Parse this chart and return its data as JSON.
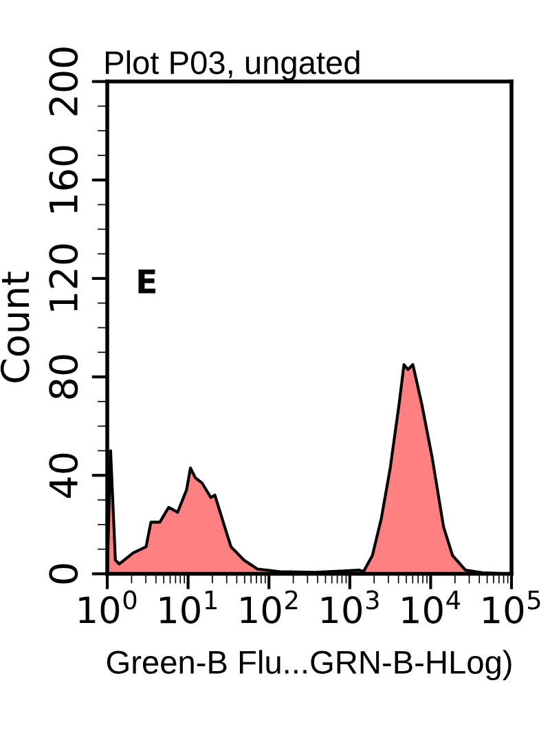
{
  "chart_data": {
    "type": "area",
    "title": "Plot P03, ungated",
    "xlabel": "Green-B Flu...GRN-B-HLog)",
    "ylabel": "Count",
    "annotations": [
      "E"
    ],
    "log": "x",
    "xlim": [
      1,
      100000
    ],
    "xticks": [
      {
        "value": 1,
        "label": "10$^{0}$"
      },
      {
        "value": 10,
        "label": "10$^{1}$"
      },
      {
        "value": 100,
        "label": "10$^{2}$"
      },
      {
        "value": 1000,
        "label": "10$^{3}$"
      },
      {
        "value": 10000,
        "label": "10$^{4}$"
      },
      {
        "value": 100000,
        "label": "10$^{5}$"
      }
    ],
    "ylim": [
      0,
      200
    ],
    "yticks": [
      0,
      40,
      80,
      120,
      160,
      200
    ],
    "grid": false,
    "series": [
      {
        "color": "#ff8080",
        "x": [
          1.0,
          1.1,
          1.26,
          1.41,
          2.09,
          3.02,
          3.47,
          4.47,
          5.75,
          7.41,
          9.55,
          10.7,
          12.3,
          14.8,
          19.1,
          21.4,
          26.3,
          33.9,
          49.0,
          72.4,
          135,
          372,
          1318,
          1479,
          1905,
          2455,
          3162,
          4074,
          4677,
          5248,
          6026,
          7762,
          10471,
          14454,
          18621,
          26915,
          44668,
          95499
        ],
        "values": [
          0,
          50,
          5.6,
          4,
          8.5,
          11,
          21,
          21,
          27,
          25,
          34,
          43,
          39,
          37,
          31,
          32,
          22.5,
          11,
          5.6,
          1.9,
          0.9,
          0.6,
          1.5,
          0.9,
          7.5,
          22.5,
          43,
          69,
          85,
          83,
          85,
          69,
          47,
          19,
          7.5,
          1.5,
          0.4,
          0
        ]
      }
    ]
  }
}
